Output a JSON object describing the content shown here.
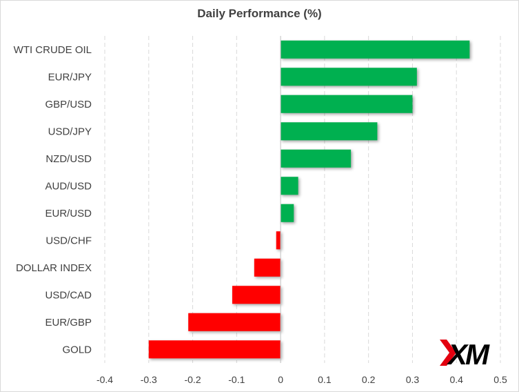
{
  "chart_data": {
    "type": "bar",
    "orientation": "horizontal",
    "title": "Daily Performance  (%)",
    "categories": [
      "WTI CRUDE OIL",
      "EUR/JPY",
      "GBP/USD",
      "USD/JPY",
      "NZD/USD",
      "AUD/USD",
      "EUR/USD",
      "USD/CHF",
      "DOLLAR INDEX",
      "USD/CAD",
      "EUR/GBP",
      "GOLD"
    ],
    "values": [
      0.43,
      0.31,
      0.3,
      0.22,
      0.16,
      0.04,
      0.03,
      -0.01,
      -0.06,
      -0.11,
      -0.21,
      -0.3
    ],
    "xlim": [
      -0.4,
      0.5
    ],
    "xticks": [
      "-0.4",
      "-0.3",
      "-0.2",
      "-0.1",
      "0",
      "0.1",
      "0.2",
      "0.3",
      "0.4",
      "0.5"
    ],
    "grid": "vertical-dashed",
    "colors": {
      "positive": "#00b050",
      "negative": "#ff0000",
      "grid": "#d9d9d9",
      "axis": "#bfbfbf"
    }
  },
  "logo": {
    "text": "XM",
    "name": "xm-logo",
    "colors": {
      "mark": "#000000",
      "accent": "#e3000f"
    }
  }
}
